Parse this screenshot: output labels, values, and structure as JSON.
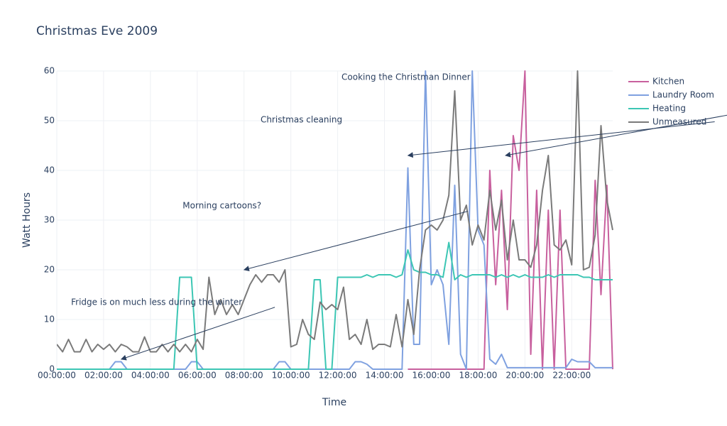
{
  "chart_data": {
    "type": "line",
    "title": "Christmas Eve 2009",
    "xlabel": "Time",
    "ylabel": "Watt Hours",
    "x": [
      "00:00:00",
      "00:15:00",
      "00:30:00",
      "00:45:00",
      "01:00:00",
      "01:15:00",
      "01:30:00",
      "01:45:00",
      "02:00:00",
      "02:15:00",
      "02:30:00",
      "02:45:00",
      "03:00:00",
      "03:15:00",
      "03:30:00",
      "03:45:00",
      "04:00:00",
      "04:15:00",
      "04:30:00",
      "04:45:00",
      "05:00:00",
      "05:15:00",
      "05:30:00",
      "05:45:00",
      "06:00:00",
      "06:15:00",
      "06:30:00",
      "06:45:00",
      "07:00:00",
      "07:15:00",
      "07:30:00",
      "07:45:00",
      "08:00:00",
      "08:15:00",
      "08:30:00",
      "08:45:00",
      "09:00:00",
      "09:15:00",
      "09:30:00",
      "09:45:00",
      "10:00:00",
      "10:15:00",
      "10:30:00",
      "10:45:00",
      "11:00:00",
      "11:15:00",
      "11:30:00",
      "11:45:00",
      "12:00:00",
      "12:15:00",
      "12:30:00",
      "12:45:00",
      "13:00:00",
      "13:15:00",
      "13:30:00",
      "13:45:00",
      "14:00:00",
      "14:15:00",
      "14:30:00",
      "14:45:00",
      "15:00:00",
      "15:15:00",
      "15:30:00",
      "15:45:00",
      "16:00:00",
      "16:15:00",
      "16:30:00",
      "16:45:00",
      "17:00:00",
      "17:15:00",
      "17:30:00",
      "17:45:00",
      "18:00:00",
      "18:15:00",
      "18:30:00",
      "18:45:00",
      "19:00:00",
      "19:15:00",
      "19:30:00",
      "19:45:00",
      "20:00:00",
      "20:15:00",
      "20:30:00",
      "20:45:00",
      "21:00:00",
      "21:15:00",
      "21:30:00",
      "21:45:00",
      "22:00:00",
      "22:15:00",
      "22:30:00",
      "22:45:00",
      "23:00:00",
      "23:15:00",
      "23:30:00",
      "23:45:00"
    ],
    "series": [
      {
        "name": "Kitchen",
        "color": "#c8609e",
        "values": [
          null,
          null,
          null,
          null,
          null,
          null,
          null,
          null,
          null,
          null,
          null,
          null,
          null,
          null,
          null,
          null,
          null,
          null,
          null,
          null,
          null,
          null,
          null,
          null,
          null,
          null,
          null,
          null,
          null,
          null,
          null,
          null,
          null,
          null,
          null,
          null,
          null,
          null,
          null,
          null,
          null,
          null,
          null,
          null,
          null,
          null,
          null,
          null,
          null,
          null,
          null,
          null,
          null,
          null,
          null,
          null,
          null,
          null,
          null,
          null,
          0,
          0,
          0,
          0,
          0,
          0,
          0,
          0,
          0,
          0,
          0,
          0,
          0,
          0,
          40,
          17,
          36,
          12,
          47,
          40,
          60,
          3,
          36,
          0,
          32,
          0,
          32,
          0,
          0,
          0,
          0,
          0,
          38,
          15,
          37,
          0
        ]
      },
      {
        "name": "Laundry Room",
        "color": "#7fa1e0",
        "values": [
          0,
          0,
          0,
          0,
          0,
          0,
          0,
          0,
          0,
          0,
          1.5,
          1.5,
          0,
          0,
          0,
          0,
          0,
          0,
          0,
          0,
          0,
          0,
          0,
          1.5,
          1.5,
          0,
          0,
          0,
          0,
          0,
          0,
          0,
          0,
          0,
          0,
          0,
          0,
          0,
          1.5,
          1.5,
          0,
          0,
          0,
          0,
          0,
          0,
          0,
          0,
          0,
          0,
          0,
          1.5,
          1.5,
          1,
          0,
          0,
          0,
          0,
          0,
          0,
          40.5,
          5,
          5,
          60,
          17,
          20,
          17,
          5,
          37,
          3,
          0,
          60,
          28,
          25,
          2,
          1,
          3,
          0.3,
          0.3,
          0.3,
          0.3,
          0.3,
          0.3,
          0.3,
          0.3,
          0.3,
          0.3,
          0.3,
          2,
          1.5,
          1.5,
          1.5,
          0.3,
          0.3,
          0.3,
          0.3
        ]
      },
      {
        "name": "Heating",
        "color": "#3cc6b4",
        "values": [
          0,
          0,
          0,
          0,
          0,
          0,
          0,
          0,
          0,
          0,
          0,
          0,
          0,
          0,
          0,
          0,
          0,
          0,
          0,
          0,
          0,
          18.5,
          18.5,
          18.5,
          0,
          0,
          0,
          0,
          0,
          0,
          0,
          0,
          0,
          0,
          0,
          0,
          0,
          0,
          0,
          0,
          0,
          0,
          0,
          0,
          18,
          18,
          0,
          0,
          18.5,
          18.5,
          18.5,
          18.5,
          18.5,
          19,
          18.5,
          19,
          19,
          19,
          18.5,
          19,
          24,
          20,
          19.5,
          19.5,
          19,
          19,
          18.5,
          25.5,
          18,
          19,
          18.5,
          19,
          19,
          19,
          19,
          18.5,
          19,
          18.5,
          19,
          18.5,
          19,
          18.5,
          18.5,
          18.5,
          19,
          18.5,
          19,
          19,
          19,
          19,
          18.5,
          18.5,
          18,
          18,
          18,
          18
        ]
      },
      {
        "name": "Unmeasured",
        "color": "#7a7a7a",
        "values": [
          5,
          3.5,
          6,
          3.5,
          3.5,
          6,
          3.5,
          5,
          4,
          5,
          3.5,
          5,
          4.5,
          3.5,
          3.5,
          6.5,
          3.5,
          3.5,
          5,
          3.5,
          5,
          3.5,
          5,
          3.5,
          6,
          4,
          18.5,
          11,
          14,
          11,
          13,
          11,
          14,
          17,
          19,
          17.5,
          19,
          19,
          17.5,
          20,
          4.5,
          5,
          10,
          7,
          6,
          13.5,
          12,
          13,
          12,
          16.5,
          6,
          7,
          5,
          10,
          4,
          5,
          5,
          4.5,
          11,
          4.5,
          14,
          7,
          20,
          28,
          29,
          28,
          30,
          35,
          56,
          30,
          33,
          25,
          29,
          26,
          36,
          28,
          34,
          22,
          30,
          22,
          22,
          20.5,
          25,
          36,
          43,
          25,
          24,
          26,
          21,
          60,
          20,
          20.5,
          27,
          49,
          34,
          28
        ]
      }
    ],
    "xlim": [
      "00:00:00",
      "23:45:00"
    ],
    "xticks": [
      "00:00:00",
      "02:00:00",
      "04:00:00",
      "06:00:00",
      "08:00:00",
      "10:00:00",
      "12:00:00",
      "14:00:00",
      "16:00:00",
      "18:00:00",
      "20:00:00",
      "22:00:00"
    ],
    "ylim": [
      0,
      60
    ],
    "yticks": [
      0,
      10,
      20,
      30,
      40,
      50,
      60
    ],
    "grid": true,
    "legend": "top-right",
    "annotations": [
      {
        "text": "Fridge is on much less during the winter",
        "x": "02:45:00",
        "y": 2
      },
      {
        "text": "Morning cartoons?",
        "x": "08:00:00",
        "y": 20
      },
      {
        "text": "Christmas cleaning",
        "x": "15:00:00",
        "y": 43
      },
      {
        "text": "Cooking the Christman Dinner",
        "x": "19:10:00",
        "y": 43
      }
    ]
  }
}
